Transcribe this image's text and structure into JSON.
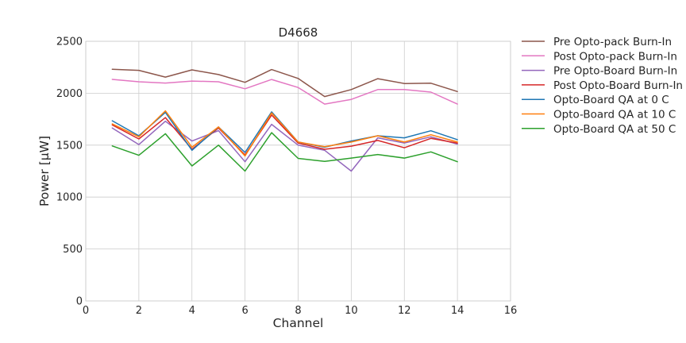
{
  "chart_data": {
    "type": "line",
    "title": "D4668",
    "xlabel": "Channel",
    "ylabel": "Power [μW]",
    "xlim": [
      0,
      16
    ],
    "ylim": [
      0,
      2500
    ],
    "xticks": [
      0,
      2,
      4,
      6,
      8,
      10,
      12,
      14,
      16
    ],
    "yticks": [
      0,
      500,
      1000,
      1500,
      2000,
      2500
    ],
    "grid": true,
    "legend_position": "outside-right",
    "x": [
      1,
      2,
      3,
      4,
      5,
      6,
      7,
      8,
      9,
      10,
      11,
      12,
      13,
      14
    ],
    "series": [
      {
        "name": "Pre Opto-pack Burn-In",
        "color": "#8c564b",
        "values": [
          2230,
          2220,
          2155,
          2225,
          2180,
          2105,
          2228,
          2142,
          1968,
          2035,
          2140,
          2093,
          2096,
          2016
        ]
      },
      {
        "name": "Post Opto-pack Burn-In",
        "color": "#e377c2",
        "values": [
          2133,
          2110,
          2098,
          2117,
          2110,
          2043,
          2132,
          2055,
          1895,
          1940,
          2035,
          2035,
          2011,
          1895
        ]
      },
      {
        "name": "Pre Opto-Board Burn-In",
        "color": "#9467bd",
        "values": [
          1665,
          1505,
          1730,
          1540,
          1640,
          1340,
          1700,
          1500,
          1450,
          1250,
          1570,
          1520,
          1580,
          1510
        ]
      },
      {
        "name": "Post Opto-Board Burn-In",
        "color": "#d62728",
        "values": [
          1695,
          1560,
          1765,
          1460,
          1665,
          1405,
          1790,
          1520,
          1460,
          1490,
          1545,
          1475,
          1565,
          1520
        ]
      },
      {
        "name": "Opto-Board QA at 0 C",
        "color": "#1f77b4",
        "values": [
          1735,
          1590,
          1815,
          1450,
          1675,
          1430,
          1820,
          1530,
          1480,
          1540,
          1590,
          1570,
          1638,
          1553
        ]
      },
      {
        "name": "Opto-Board QA at 10 C",
        "color": "#ff7f0e",
        "values": [
          1705,
          1580,
          1830,
          1480,
          1675,
          1395,
          1810,
          1530,
          1485,
          1530,
          1590,
          1530,
          1600,
          1530
        ]
      },
      {
        "name": "Opto-Board QA at 50 C",
        "color": "#2ca02c",
        "values": [
          1492,
          1402,
          1610,
          1300,
          1500,
          1250,
          1620,
          1372,
          1343,
          1375,
          1410,
          1375,
          1435,
          1340
        ]
      }
    ]
  }
}
